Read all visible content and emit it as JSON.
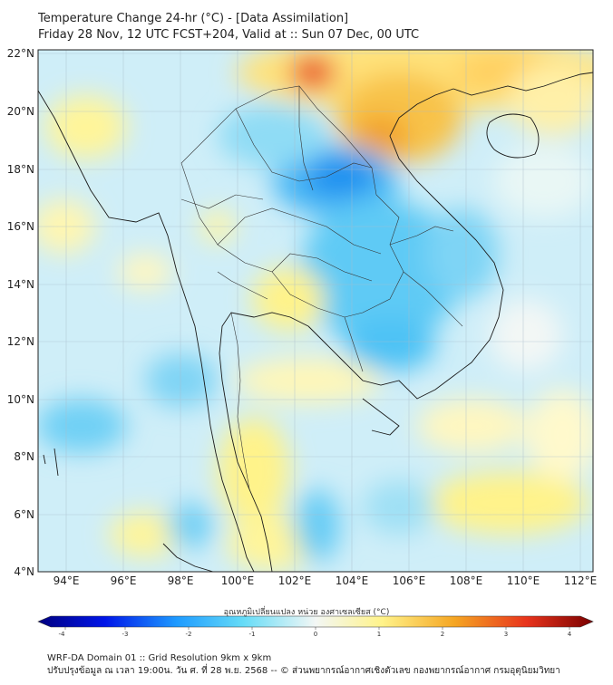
{
  "header": {
    "title_line1": "Temperature Change 24-hr (°C) - [Data Assimilation]",
    "title_line2": "Friday 28 Nov, 12 UTC FCST+204, Valid at :: Sun 07 Dec, 00 UTC"
  },
  "map": {
    "lat_labels": [
      "22°N",
      "20°N",
      "18°N",
      "16°N",
      "14°N",
      "12°N",
      "10°N",
      "8°N",
      "6°N",
      "4°N"
    ],
    "lon_labels": [
      "94°E",
      "96°E",
      "98°E",
      "100°E",
      "102°E",
      "104°E",
      "106°E",
      "108°E",
      "110°E",
      "112°E"
    ],
    "color_low": "#1e9bff",
    "color_cool": "#7fd8f5",
    "color_neutral": "#f3f5f4",
    "color_warm": "#fff38a",
    "color_hot": "#f5a623",
    "color_hotspot": "#e8341c"
  },
  "colorbar": {
    "title": "อุณหภูมิเปลี่ยนแปลง หน่วย องศาเซลเซียส (°C)",
    "tick_labels": [
      "-4",
      "-3",
      "-2",
      "-1",
      "0",
      "1",
      "2",
      "3",
      "4"
    ],
    "min": -4,
    "max": 4
  },
  "footer": {
    "line1": "WRF-DA Domain 01 :: Grid Resolution 9km x 9km",
    "line2": "ปรับปรุงข้อมูล ณ เวลา 19:00น. วัน ศ. ที่ 28 พ.ย. 2568 -- © ส่วนพยากรณ์อากาศเชิงตัวเลข กองพยากรณ์อากาศ กรมอุตุนิยมวิทยา"
  }
}
